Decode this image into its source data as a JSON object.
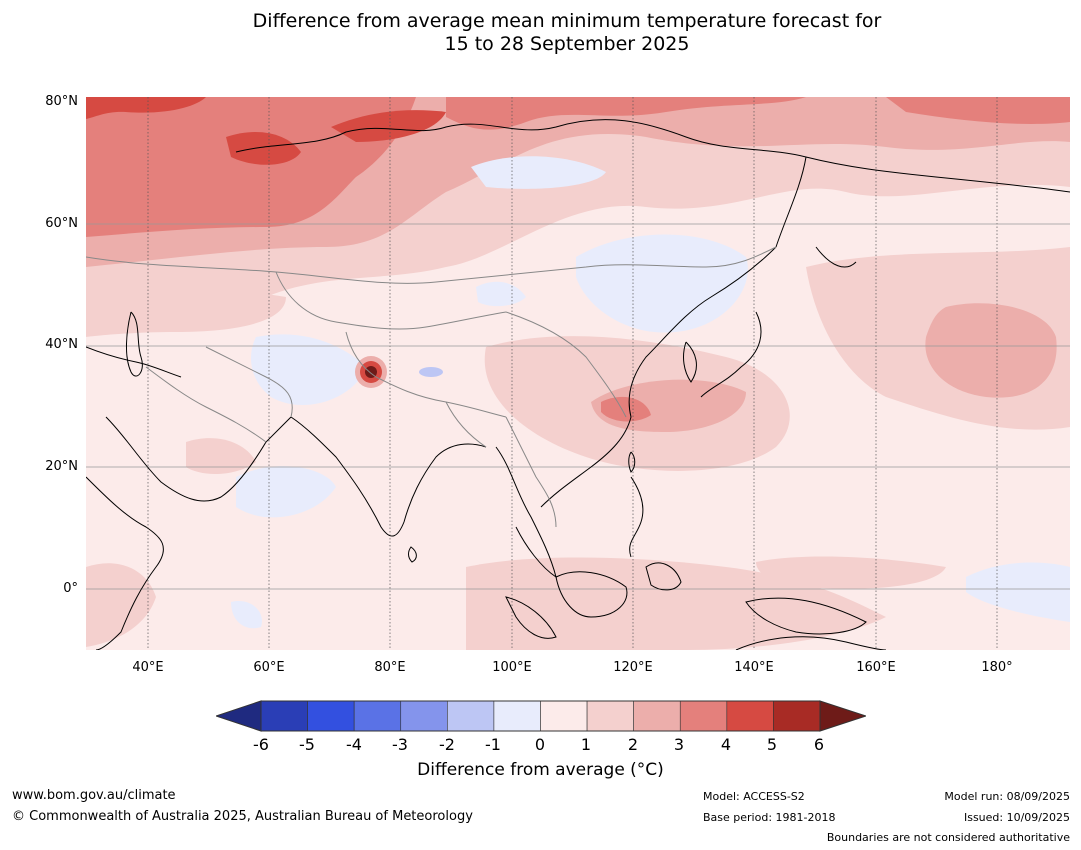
{
  "title_line1": "Difference from average mean minimum temperature forecast for",
  "title_line2": "15 to 28 September 2025",
  "lat_labels": [
    "80°N",
    "60°N",
    "40°N",
    "20°N",
    "0°"
  ],
  "lon_labels": [
    "40°E",
    "60°E",
    "80°E",
    "100°E",
    "120°E",
    "140°E",
    "160°E",
    "180°"
  ],
  "colorbar": {
    "labels": [
      "-6",
      "-5",
      "-4",
      "-3",
      "-2",
      "-1",
      "0",
      "1",
      "2",
      "3",
      "4",
      "5",
      "6"
    ],
    "colors": [
      "#1f2a80",
      "#2a3eb6",
      "#3350e0",
      "#5a72e6",
      "#8494ec",
      "#bdc6f4",
      "#e8ecfc",
      "#fcebea",
      "#f4d0ce",
      "#ecaeab",
      "#e4807c",
      "#d64a42",
      "#a82b25",
      "#6e1b18"
    ],
    "title": "Difference from average (°C)"
  },
  "footer": {
    "url": "www.bom.gov.au/climate",
    "copyright": "© Commonwealth of Australia 2025, Australian Bureau of Meteorology",
    "model": "Model: ACCESS-S2",
    "base_period": "Base period: 1981-2018",
    "model_run": "Model run: 08/09/2025",
    "issued": "Issued: 10/09/2025",
    "disclaimer": "Boundaries are not considered authoritative"
  }
}
